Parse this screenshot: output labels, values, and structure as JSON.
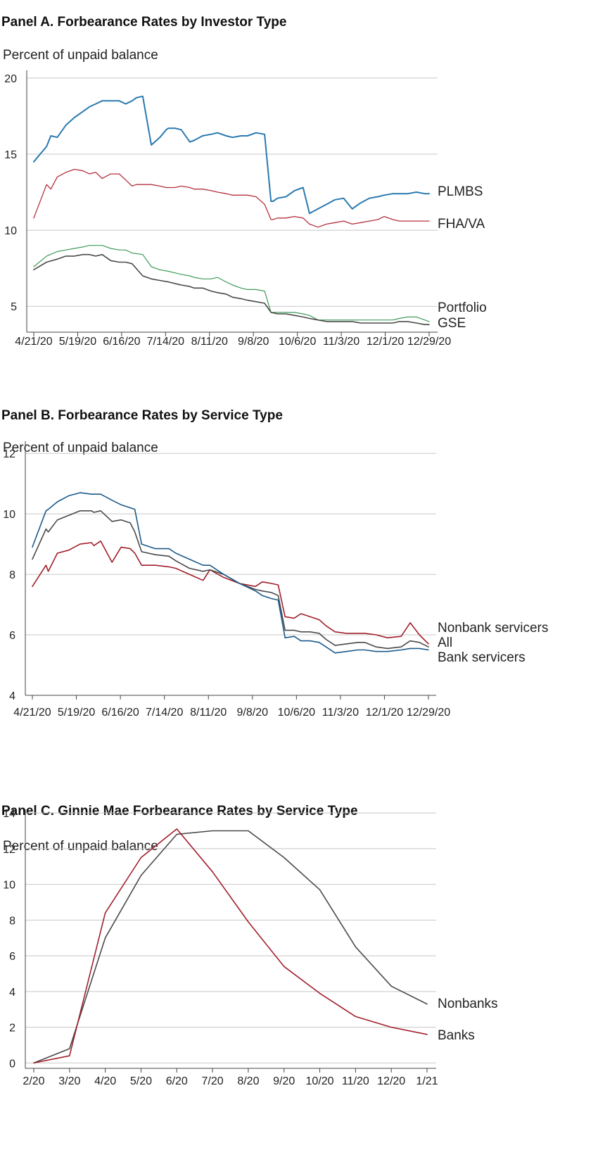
{
  "chart_data": [
    {
      "type": "line",
      "title": "Panel A. Forbearance Rates by Investor Type",
      "ylabel": "Percent of unpaid balance",
      "xlabel": "",
      "ylim": [
        3.3,
        20.5
      ],
      "yticks": [
        5,
        10,
        15,
        20
      ],
      "x_tick_labels": [
        "4/21/20",
        "5/19/20",
        "6/16/20",
        "7/14/20",
        "8/11/20",
        "9/8/20",
        "10/6/20",
        "11/3/20",
        "12/1/20",
        "12/29/20"
      ],
      "grid": true,
      "legend": "inline-right",
      "series": [
        {
          "name": "PLMBS",
          "color": "#2a7ab0",
          "width": 2,
          "x": [
            0,
            0.6,
            0.8,
            1.1,
            1.5,
            1.9,
            2.3,
            2.6,
            2.9,
            3.2,
            3.6,
            4,
            4.3,
            4.6,
            4.8,
            5.1,
            5.5,
            5.9,
            6.2,
            6.3,
            6.6,
            6.9,
            7.3,
            7.5,
            7.9,
            8.3,
            8.6,
            9,
            9.3,
            9.7,
            10,
            10.4,
            10.8,
            11.1,
            11.2,
            11.4,
            11.8,
            12.2,
            12.6,
            12.9,
            13.3,
            13.7,
            14.1,
            14.5,
            14.9,
            15.3,
            15.7,
            16.1,
            16.4,
            16.8,
            17.1,
            17.5,
            17.9,
            18.3,
            18.5
          ],
          "y": [
            14.5,
            15.5,
            16.2,
            16.1,
            16.9,
            17.4,
            17.8,
            18.1,
            18.3,
            18.5,
            18.5,
            18.5,
            18.3,
            18.5,
            18.7,
            18.8,
            15.6,
            16.1,
            16.6,
            16.7,
            16.7,
            16.6,
            15.8,
            15.9,
            16.2,
            16.3,
            16.4,
            16.2,
            16.1,
            16.2,
            16.2,
            16.4,
            16.3,
            11.9,
            11.9,
            12.1,
            12.2,
            12.6,
            12.8,
            11.1,
            11.4,
            11.7,
            12.0,
            12.1,
            11.4,
            11.8,
            12.1,
            12.2,
            12.3,
            12.4,
            12.4,
            12.4,
            12.5,
            12.4,
            12.4
          ]
        },
        {
          "name": "FHA/VA",
          "color": "#b5303b",
          "width": 1.3,
          "x": [
            0,
            0.6,
            0.8,
            1.1,
            1.5,
            1.9,
            2.3,
            2.6,
            2.9,
            3.2,
            3.6,
            4,
            4.3,
            4.6,
            4.8,
            5.1,
            5.5,
            5.9,
            6.2,
            6.3,
            6.6,
            6.9,
            7.3,
            7.5,
            7.9,
            8.3,
            8.6,
            9,
            9.3,
            9.7,
            10,
            10.4,
            10.8,
            11.1,
            11.2,
            11.4,
            11.8,
            12.2,
            12.6,
            12.9,
            13.3,
            13.7,
            14.1,
            14.5,
            14.9,
            15.3,
            15.7,
            16.1,
            16.4,
            16.8,
            17.1,
            17.5,
            17.9,
            18.3,
            18.5
          ],
          "y": [
            10.8,
            13.0,
            12.7,
            13.5,
            13.8,
            14.0,
            13.9,
            13.7,
            13.8,
            13.4,
            13.7,
            13.7,
            13.3,
            12.9,
            13.0,
            13.0,
            13.0,
            12.9,
            12.8,
            12.8,
            12.8,
            12.9,
            12.8,
            12.7,
            12.7,
            12.6,
            12.5,
            12.4,
            12.3,
            12.3,
            12.3,
            12.2,
            11.7,
            10.7,
            10.7,
            10.8,
            10.8,
            10.9,
            10.8,
            10.4,
            10.2,
            10.4,
            10.5,
            10.6,
            10.4,
            10.5,
            10.6,
            10.7,
            10.9,
            10.7,
            10.6,
            10.6,
            10.6,
            10.6,
            10.6
          ]
        },
        {
          "name": "Portfolio",
          "color": "#3e9a5a",
          "width": 1.2,
          "x": [
            0,
            0.6,
            1.1,
            1.5,
            1.9,
            2.3,
            2.6,
            2.9,
            3.2,
            3.6,
            4,
            4.3,
            4.6,
            5.1,
            5.5,
            5.9,
            6.3,
            6.9,
            7.3,
            7.5,
            7.9,
            8.3,
            8.6,
            9,
            9.3,
            9.7,
            10,
            10.4,
            10.8,
            11.1,
            11.4,
            11.8,
            12.2,
            12.6,
            12.9,
            13.3,
            13.7,
            14.1,
            14.5,
            14.9,
            15.3,
            15.7,
            16.1,
            16.4,
            16.8,
            17.1,
            17.5,
            17.9,
            18.3,
            18.5
          ],
          "y": [
            7.6,
            8.3,
            8.6,
            8.7,
            8.8,
            8.9,
            9.0,
            9.0,
            9.0,
            8.8,
            8.7,
            8.7,
            8.5,
            8.4,
            7.6,
            7.4,
            7.3,
            7.1,
            7.0,
            6.9,
            6.8,
            6.8,
            6.9,
            6.6,
            6.4,
            6.2,
            6.1,
            6.1,
            6.0,
            4.6,
            4.6,
            4.6,
            4.6,
            4.5,
            4.4,
            4.1,
            4.1,
            4.1,
            4.1,
            4.1,
            4.1,
            4.1,
            4.1,
            4.1,
            4.1,
            4.2,
            4.3,
            4.3,
            4.1,
            4.0
          ]
        },
        {
          "name": "GSE",
          "color": "#4a4a4a",
          "width": 1.6,
          "x": [
            0,
            0.6,
            1.1,
            1.5,
            1.9,
            2.3,
            2.6,
            2.9,
            3.2,
            3.6,
            4,
            4.3,
            4.6,
            5.1,
            5.5,
            5.9,
            6.3,
            6.9,
            7.3,
            7.5,
            7.9,
            8.3,
            8.6,
            9,
            9.3,
            9.7,
            10,
            10.4,
            10.8,
            11.1,
            11.4,
            11.8,
            12.2,
            12.6,
            12.9,
            13.3,
            13.7,
            14.1,
            14.5,
            14.9,
            15.3,
            15.7,
            16.1,
            16.4,
            16.8,
            17.1,
            17.5,
            17.9,
            18.3,
            18.5
          ],
          "y": [
            7.4,
            7.9,
            8.1,
            8.3,
            8.3,
            8.4,
            8.4,
            8.3,
            8.4,
            8.0,
            7.9,
            7.9,
            7.8,
            7.0,
            6.8,
            6.7,
            6.6,
            6.4,
            6.3,
            6.2,
            6.2,
            6.0,
            5.9,
            5.8,
            5.6,
            5.5,
            5.4,
            5.3,
            5.2,
            4.6,
            4.5,
            4.5,
            4.4,
            4.3,
            4.2,
            4.1,
            4.0,
            4.0,
            4.0,
            4.0,
            3.9,
            3.9,
            3.9,
            3.9,
            3.9,
            4.0,
            4.0,
            3.9,
            3.8,
            3.8
          ]
        }
      ]
    },
    {
      "type": "line",
      "title": "Panel B. Forbearance Rates by Service Type",
      "ylabel": "Percent of unpaid balance",
      "xlabel": "",
      "ylim": [
        4,
        12.4
      ],
      "yticks": [
        4,
        6,
        8,
        10,
        12
      ],
      "x_tick_labels": [
        "4/21/20",
        "5/19/20",
        "6/16/20",
        "7/14/20",
        "8/11/20",
        "9/8/20",
        "10/6/20",
        "11/3/20",
        "12/1/20",
        "12/29/20"
      ],
      "grid": true,
      "legend": "inline-right",
      "series": [
        {
          "name": "Nonbank servicers",
          "color": "#a11f2b",
          "width": 1.6,
          "x": [
            0,
            0.6,
            0.7,
            1.1,
            1.6,
            2.1,
            2.6,
            2.7,
            3.0,
            3.5,
            3.9,
            4.3,
            4.5,
            4.8,
            5.4,
            6.0,
            6.3,
            6.9,
            7.5,
            7.8,
            8.4,
            9.1,
            9.8,
            10.1,
            10.5,
            10.8,
            11.1,
            11.5,
            11.8,
            12.2,
            12.6,
            12.9,
            13.3,
            13.8,
            14.3,
            14.6,
            15.1,
            15.6,
            16.2,
            16.6,
            17.0,
            17.4
          ],
          "y": [
            7.6,
            8.3,
            8.1,
            8.7,
            8.8,
            9.0,
            9.05,
            8.95,
            9.1,
            8.4,
            8.9,
            8.85,
            8.7,
            8.3,
            8.3,
            8.25,
            8.2,
            8.0,
            7.8,
            8.15,
            7.9,
            7.7,
            7.6,
            7.75,
            7.7,
            7.65,
            6.6,
            6.55,
            6.7,
            6.6,
            6.5,
            6.3,
            6.1,
            6.05,
            6.05,
            6.05,
            6.0,
            5.9,
            5.95,
            6.4,
            6.0,
            5.7
          ]
        },
        {
          "name": "All",
          "color": "#4a4a4a",
          "width": 1.6,
          "x": [
            0,
            0.6,
            0.7,
            1.1,
            1.6,
            2.1,
            2.6,
            2.7,
            3.0,
            3.5,
            3.9,
            4.3,
            4.5,
            4.8,
            5.4,
            6.0,
            6.3,
            6.9,
            7.5,
            7.8,
            8.4,
            9.1,
            9.8,
            10.1,
            10.5,
            10.8,
            11.1,
            11.5,
            11.8,
            12.2,
            12.6,
            12.9,
            13.3,
            13.8,
            14.3,
            14.6,
            15.1,
            15.6,
            16.2,
            16.6,
            17.0,
            17.4
          ],
          "y": [
            8.5,
            9.5,
            9.4,
            9.8,
            9.95,
            10.1,
            10.1,
            10.05,
            10.1,
            9.75,
            9.8,
            9.7,
            9.4,
            8.75,
            8.65,
            8.6,
            8.45,
            8.2,
            8.1,
            8.15,
            8.0,
            7.7,
            7.5,
            7.45,
            7.4,
            7.3,
            6.15,
            6.15,
            6.1,
            6.1,
            6.05,
            5.85,
            5.65,
            5.7,
            5.75,
            5.75,
            5.6,
            5.55,
            5.6,
            5.8,
            5.75,
            5.6
          ]
        },
        {
          "name": "Bank servicers",
          "color": "#1c5a8a",
          "width": 1.6,
          "x": [
            0,
            0.6,
            0.7,
            1.1,
            1.6,
            2.1,
            2.6,
            2.7,
            3.0,
            3.5,
            3.9,
            4.3,
            4.5,
            4.8,
            5.4,
            6.0,
            6.3,
            6.9,
            7.5,
            7.8,
            8.4,
            9.1,
            9.8,
            10.1,
            10.5,
            10.8,
            11.1,
            11.5,
            11.8,
            12.2,
            12.6,
            12.9,
            13.3,
            13.8,
            14.3,
            14.6,
            15.1,
            15.6,
            16.2,
            16.6,
            17.0,
            17.4
          ],
          "y": [
            8.9,
            10.1,
            10.15,
            10.4,
            10.6,
            10.7,
            10.65,
            10.65,
            10.65,
            10.45,
            10.3,
            10.2,
            10.15,
            9.0,
            8.85,
            8.85,
            8.7,
            8.5,
            8.3,
            8.3,
            8.0,
            7.7,
            7.45,
            7.3,
            7.2,
            7.15,
            5.9,
            5.95,
            5.8,
            5.8,
            5.75,
            5.6,
            5.4,
            5.45,
            5.5,
            5.5,
            5.45,
            5.45,
            5.5,
            5.55,
            5.55,
            5.5
          ]
        }
      ]
    },
    {
      "type": "line",
      "title": "Panel C. Ginnie Mae Forbearance Rates by Service Type",
      "ylabel": "Percent of unpaid balance",
      "xlabel": "",
      "ylim": [
        -0.3,
        14.2
      ],
      "yticks": [
        0,
        2,
        4,
        6,
        8,
        10,
        12,
        14
      ],
      "categories": [
        "2/20",
        "3/20",
        "4/20",
        "5/20",
        "6/20",
        "7/20",
        "8/20",
        "9/20",
        "10/20",
        "11/20",
        "12/20",
        "1/21"
      ],
      "grid": true,
      "legend": "inline-right",
      "series": [
        {
          "name": "Nonbanks",
          "color": "#4a4a4a",
          "width": 1.6,
          "x": [
            0,
            1,
            2,
            3,
            4,
            5,
            6,
            7,
            8,
            9,
            10,
            11
          ],
          "y": [
            0.0,
            0.8,
            7.0,
            10.5,
            12.8,
            13.0,
            13.0,
            11.5,
            9.7,
            6.5,
            4.3,
            3.3
          ]
        },
        {
          "name": "Banks",
          "color": "#a11f2b",
          "width": 1.6,
          "x": [
            0,
            1,
            2,
            3,
            4,
            5,
            6,
            7,
            8,
            9,
            10,
            11
          ],
          "y": [
            0.0,
            0.4,
            8.4,
            11.5,
            13.1,
            10.7,
            7.9,
            5.4,
            3.9,
            2.6,
            2.0,
            1.6
          ]
        }
      ]
    }
  ]
}
